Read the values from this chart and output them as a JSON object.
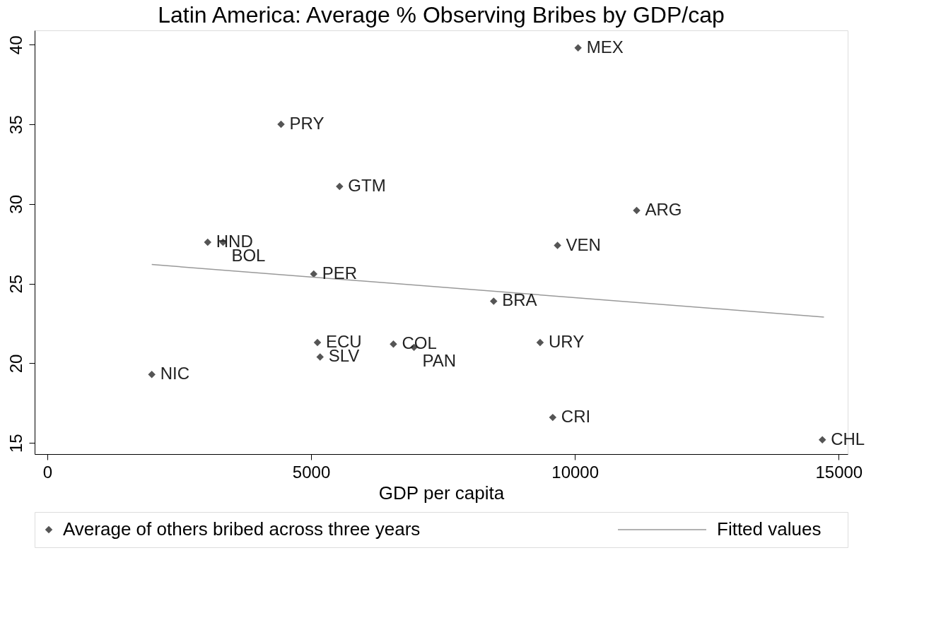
{
  "chart_data": {
    "type": "scatter",
    "title": "Latin America: Average % Observing Bribes by GDP/cap",
    "xlabel": "GDP per capita",
    "xlim": [
      -240,
      15170
    ],
    "xticks": [
      0,
      5000,
      10000,
      15000
    ],
    "ylim": [
      14.3,
      40.9
    ],
    "yticks": [
      15,
      20,
      25,
      30,
      35,
      40
    ],
    "grid": false,
    "legend": "bottom",
    "series": [
      {
        "name": "Average of others bribed across three years",
        "marker": "diamond",
        "color": "#555555",
        "x": [
          10060,
          4430,
          5540,
          11170,
          3040,
          3330,
          9670,
          5050,
          8460,
          5120,
          9340,
          6560,
          6950,
          5170,
          1980,
          9580,
          14690
        ],
        "values": [
          39.8,
          35.0,
          31.1,
          29.6,
          27.6,
          27.6,
          27.4,
          25.6,
          23.9,
          21.3,
          21.3,
          21.2,
          21.0,
          20.4,
          19.3,
          16.6,
          15.2
        ]
      },
      {
        "name": "Fitted values",
        "type": "line",
        "marker": "none",
        "color": "#999999",
        "x": [
          1980,
          14720
        ],
        "values": [
          26.2,
          22.9
        ]
      }
    ],
    "annotations": [
      {
        "text": "MEX",
        "x": 10060,
        "y": 39.8
      },
      {
        "text": "PRY",
        "x": 4430,
        "y": 35.0
      },
      {
        "text": "GTM",
        "x": 5540,
        "y": 31.1
      },
      {
        "text": "ARG",
        "x": 11170,
        "y": 29.6
      },
      {
        "text": "HND",
        "x": 3040,
        "y": 27.6
      },
      {
        "text": "BOL",
        "x": 3330,
        "y": 27.6
      },
      {
        "text": "VEN",
        "x": 9670,
        "y": 27.4
      },
      {
        "text": "PER",
        "x": 5050,
        "y": 25.6
      },
      {
        "text": "BRA",
        "x": 8460,
        "y": 23.9
      },
      {
        "text": "ECU",
        "x": 5120,
        "y": 21.3
      },
      {
        "text": "URY",
        "x": 9340,
        "y": 21.3
      },
      {
        "text": "COL",
        "x": 6560,
        "y": 21.2
      },
      {
        "text": "PAN",
        "x": 6950,
        "y": 21.0
      },
      {
        "text": "SLV",
        "x": 5170,
        "y": 20.4
      },
      {
        "text": "NIC",
        "x": 1980,
        "y": 19.3
      },
      {
        "text": "CRI",
        "x": 9580,
        "y": 16.6
      },
      {
        "text": "CHL",
        "x": 14690,
        "y": 15.2
      }
    ]
  }
}
